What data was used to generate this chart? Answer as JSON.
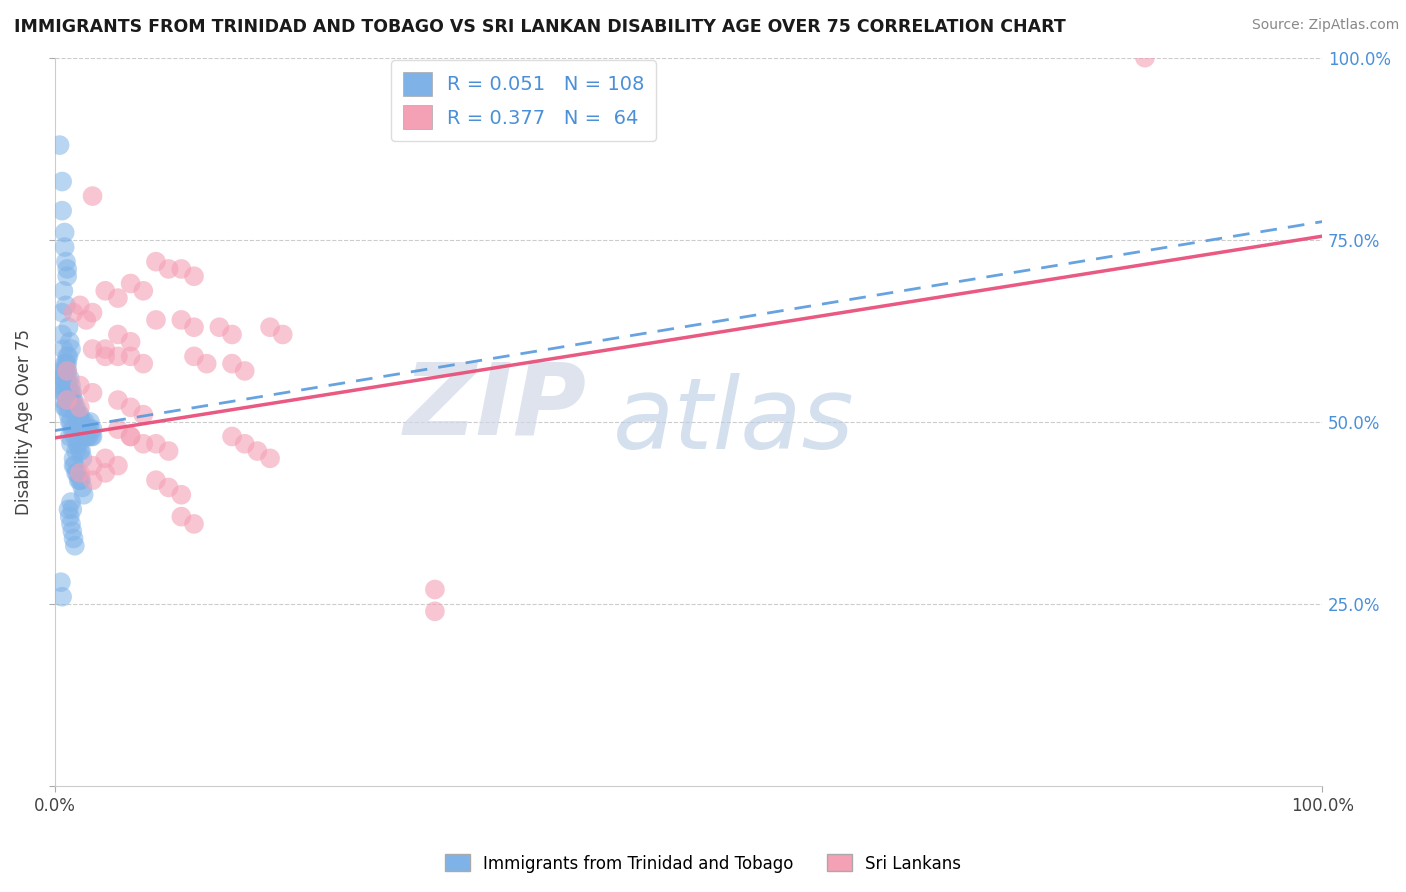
{
  "title": "IMMIGRANTS FROM TRINIDAD AND TOBAGO VS SRI LANKAN DISABILITY AGE OVER 75 CORRELATION CHART",
  "source": "Source: ZipAtlas.com",
  "ylabel": "Disability Age Over 75",
  "x_min": 0.0,
  "x_max": 1.0,
  "y_min": 0.0,
  "y_max": 1.0,
  "blue_R": 0.051,
  "blue_N": 108,
  "pink_R": 0.377,
  "pink_N": 64,
  "blue_color": "#7fb3e8",
  "pink_color": "#f4a0b5",
  "blue_line_color": "#5599dd",
  "pink_line_color": "#e8507a",
  "watermark_zip": "ZIP",
  "watermark_atlas": "atlas",
  "legend_label_blue": "Immigrants from Trinidad and Tobago",
  "legend_label_pink": "Sri Lankans",
  "blue_line_start_y": 0.488,
  "blue_line_end_y": 0.775,
  "pink_line_start_y": 0.478,
  "pink_line_end_y": 0.755,
  "blue_points": [
    [
      0.004,
      0.88
    ],
    [
      0.006,
      0.83
    ],
    [
      0.006,
      0.79
    ],
    [
      0.008,
      0.76
    ],
    [
      0.008,
      0.74
    ],
    [
      0.01,
      0.71
    ],
    [
      0.01,
      0.7
    ],
    [
      0.009,
      0.72
    ],
    [
      0.007,
      0.68
    ],
    [
      0.006,
      0.65
    ],
    [
      0.009,
      0.66
    ],
    [
      0.011,
      0.63
    ],
    [
      0.006,
      0.62
    ],
    [
      0.007,
      0.6
    ],
    [
      0.009,
      0.58
    ],
    [
      0.01,
      0.57
    ],
    [
      0.009,
      0.57
    ],
    [
      0.011,
      0.55
    ],
    [
      0.012,
      0.54
    ],
    [
      0.01,
      0.56
    ],
    [
      0.013,
      0.55
    ],
    [
      0.012,
      0.56
    ],
    [
      0.013,
      0.54
    ],
    [
      0.014,
      0.54
    ],
    [
      0.014,
      0.53
    ],
    [
      0.015,
      0.52
    ],
    [
      0.015,
      0.53
    ],
    [
      0.016,
      0.52
    ],
    [
      0.016,
      0.51
    ],
    [
      0.017,
      0.51
    ],
    [
      0.017,
      0.52
    ],
    [
      0.018,
      0.51
    ],
    [
      0.018,
      0.5
    ],
    [
      0.019,
      0.5
    ],
    [
      0.019,
      0.51
    ],
    [
      0.02,
      0.5
    ],
    [
      0.02,
      0.51
    ],
    [
      0.021,
      0.5
    ],
    [
      0.021,
      0.49
    ],
    [
      0.022,
      0.49
    ],
    [
      0.022,
      0.5
    ],
    [
      0.023,
      0.49
    ],
    [
      0.024,
      0.49
    ],
    [
      0.024,
      0.5
    ],
    [
      0.025,
      0.48
    ],
    [
      0.025,
      0.49
    ],
    [
      0.026,
      0.48
    ],
    [
      0.026,
      0.49
    ],
    [
      0.027,
      0.48
    ],
    [
      0.028,
      0.49
    ],
    [
      0.028,
      0.5
    ],
    [
      0.029,
      0.48
    ],
    [
      0.03,
      0.49
    ],
    [
      0.03,
      0.48
    ],
    [
      0.013,
      0.5
    ],
    [
      0.014,
      0.49
    ],
    [
      0.015,
      0.49
    ],
    [
      0.016,
      0.48
    ],
    [
      0.011,
      0.51
    ],
    [
      0.012,
      0.5
    ],
    [
      0.008,
      0.52
    ],
    [
      0.009,
      0.52
    ],
    [
      0.01,
      0.53
    ],
    [
      0.011,
      0.52
    ],
    [
      0.007,
      0.53
    ],
    [
      0.008,
      0.54
    ],
    [
      0.006,
      0.55
    ],
    [
      0.007,
      0.54
    ],
    [
      0.005,
      0.55
    ],
    [
      0.005,
      0.56
    ],
    [
      0.006,
      0.57
    ],
    [
      0.007,
      0.56
    ],
    [
      0.008,
      0.57
    ],
    [
      0.009,
      0.55
    ],
    [
      0.008,
      0.58
    ],
    [
      0.01,
      0.58
    ],
    [
      0.01,
      0.59
    ],
    [
      0.011,
      0.59
    ],
    [
      0.012,
      0.61
    ],
    [
      0.013,
      0.6
    ],
    [
      0.015,
      0.45
    ],
    [
      0.015,
      0.44
    ],
    [
      0.016,
      0.44
    ],
    [
      0.017,
      0.43
    ],
    [
      0.018,
      0.43
    ],
    [
      0.019,
      0.42
    ],
    [
      0.02,
      0.42
    ],
    [
      0.021,
      0.42
    ],
    [
      0.022,
      0.41
    ],
    [
      0.023,
      0.4
    ],
    [
      0.017,
      0.46
    ],
    [
      0.018,
      0.47
    ],
    [
      0.019,
      0.47
    ],
    [
      0.02,
      0.46
    ],
    [
      0.021,
      0.46
    ],
    [
      0.022,
      0.45
    ],
    [
      0.013,
      0.47
    ],
    [
      0.012,
      0.48
    ],
    [
      0.013,
      0.36
    ],
    [
      0.015,
      0.34
    ],
    [
      0.014,
      0.35
    ],
    [
      0.016,
      0.33
    ],
    [
      0.011,
      0.38
    ],
    [
      0.012,
      0.37
    ],
    [
      0.013,
      0.39
    ],
    [
      0.014,
      0.38
    ],
    [
      0.005,
      0.28
    ],
    [
      0.006,
      0.26
    ]
  ],
  "pink_points": [
    [
      0.86,
      1.0
    ],
    [
      0.03,
      0.81
    ],
    [
      0.08,
      0.72
    ],
    [
      0.09,
      0.71
    ],
    [
      0.1,
      0.71
    ],
    [
      0.11,
      0.7
    ],
    [
      0.06,
      0.69
    ],
    [
      0.07,
      0.68
    ],
    [
      0.04,
      0.68
    ],
    [
      0.05,
      0.67
    ],
    [
      0.02,
      0.66
    ],
    [
      0.03,
      0.65
    ],
    [
      0.015,
      0.65
    ],
    [
      0.025,
      0.64
    ],
    [
      0.17,
      0.63
    ],
    [
      0.18,
      0.62
    ],
    [
      0.13,
      0.63
    ],
    [
      0.14,
      0.62
    ],
    [
      0.1,
      0.64
    ],
    [
      0.11,
      0.63
    ],
    [
      0.08,
      0.64
    ],
    [
      0.05,
      0.62
    ],
    [
      0.06,
      0.61
    ],
    [
      0.06,
      0.59
    ],
    [
      0.07,
      0.58
    ],
    [
      0.04,
      0.6
    ],
    [
      0.05,
      0.59
    ],
    [
      0.03,
      0.6
    ],
    [
      0.04,
      0.59
    ],
    [
      0.14,
      0.58
    ],
    [
      0.15,
      0.57
    ],
    [
      0.11,
      0.59
    ],
    [
      0.12,
      0.58
    ],
    [
      0.01,
      0.57
    ],
    [
      0.02,
      0.55
    ],
    [
      0.03,
      0.54
    ],
    [
      0.01,
      0.53
    ],
    [
      0.02,
      0.52
    ],
    [
      0.05,
      0.53
    ],
    [
      0.06,
      0.52
    ],
    [
      0.07,
      0.51
    ],
    [
      0.06,
      0.48
    ],
    [
      0.07,
      0.47
    ],
    [
      0.08,
      0.47
    ],
    [
      0.09,
      0.46
    ],
    [
      0.05,
      0.49
    ],
    [
      0.06,
      0.48
    ],
    [
      0.14,
      0.48
    ],
    [
      0.15,
      0.47
    ],
    [
      0.16,
      0.46
    ],
    [
      0.17,
      0.45
    ],
    [
      0.04,
      0.45
    ],
    [
      0.05,
      0.44
    ],
    [
      0.03,
      0.44
    ],
    [
      0.04,
      0.43
    ],
    [
      0.02,
      0.43
    ],
    [
      0.03,
      0.42
    ],
    [
      0.08,
      0.42
    ],
    [
      0.09,
      0.41
    ],
    [
      0.1,
      0.4
    ],
    [
      0.1,
      0.37
    ],
    [
      0.11,
      0.36
    ],
    [
      0.3,
      0.27
    ],
    [
      0.3,
      0.24
    ]
  ]
}
